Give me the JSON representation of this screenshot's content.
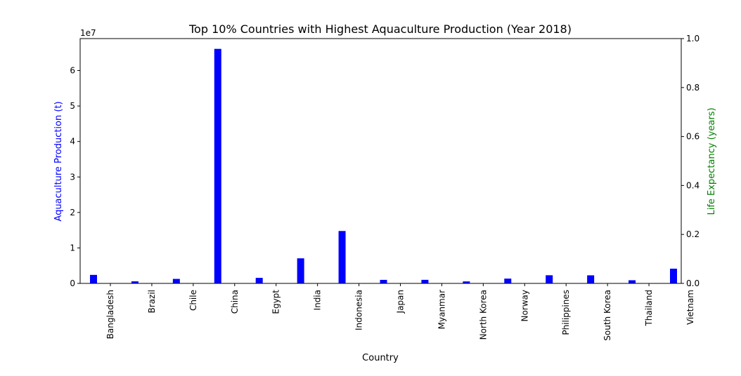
{
  "chart_data": {
    "type": "bar",
    "title": "Top 10% Countries with Highest Aquaculture Production (Year 2018)",
    "xlabel": "Country",
    "ylabel": "Aquaculture Production (t)",
    "y2label": "Life Expectancy (years)",
    "y_offset_text": "1e7",
    "y_scale": 10000000,
    "ylim": [
      0,
      69000000
    ],
    "y2lim": [
      0,
      1.0
    ],
    "y_ticks": [
      "0",
      "1",
      "2",
      "3",
      "4",
      "5",
      "6"
    ],
    "y2_ticks": [
      "0.0",
      "0.2",
      "0.4",
      "0.6",
      "0.8",
      "1.0"
    ],
    "categories": [
      "Bangladesh",
      "Brazil",
      "Chile",
      "China",
      "Egypt",
      "India",
      "Indonesia",
      "Japan",
      "Myanmar",
      "North Korea",
      "Norway",
      "Philippines",
      "South Korea",
      "Thailand",
      "Vietnam"
    ],
    "series": [
      {
        "values": [
          2400000,
          580000,
          1270000,
          66100000,
          1560000,
          7070000,
          14770000,
          1000000,
          1010000,
          560000,
          1350000,
          2300000,
          2280000,
          890000,
          4150000
        ]
      }
    ],
    "colors": {
      "bars": "#0000ff",
      "left_axis_label": "#0000ff",
      "right_axis_label": "#008000",
      "axes": "#000000"
    },
    "grid": false
  }
}
